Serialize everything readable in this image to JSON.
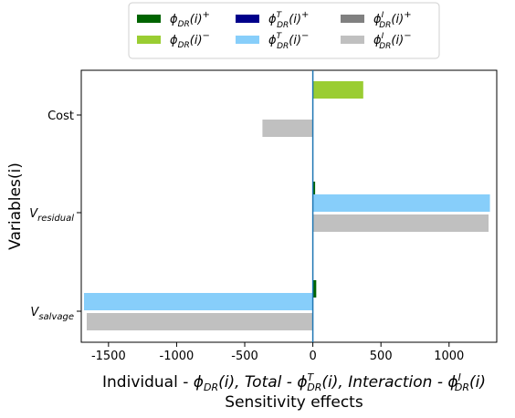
{
  "chart_data": {
    "type": "bar",
    "orientation": "horizontal",
    "categories": [
      "Cost",
      "V_residual",
      "V_salvage"
    ],
    "category_labels": [
      {
        "main": "Cost",
        "sub": ""
      },
      {
        "main": "V",
        "sub": "residual"
      },
      {
        "main": "V",
        "sub": "salvage"
      }
    ],
    "series": [
      {
        "name": "φ_DR(i)+",
        "color": "#006400",
        "values": [
          0,
          15,
          25
        ]
      },
      {
        "name": "φ_DR(i)−",
        "color": "#9acd32",
        "values": [
          370,
          0,
          0
        ]
      },
      {
        "name": "φ_DR^T(i)+",
        "color": "#00008b",
        "values": [
          0,
          0,
          0
        ]
      },
      {
        "name": "φ_DR^T(i)−",
        "color": "#87cefa",
        "values": [
          0,
          1300,
          -1680
        ]
      },
      {
        "name": "φ_DR^I(i)+",
        "color": "#808080",
        "values": [
          0,
          0,
          0
        ]
      },
      {
        "name": "φ_DR^I(i)−",
        "color": "#c0c0c0",
        "values": [
          -370,
          1290,
          -1660
        ]
      }
    ],
    "legend": {
      "position": "top",
      "columns": 3,
      "entries": [
        {
          "base": "ϕ",
          "sub": "DR",
          "sup": "",
          "arg": "(i)",
          "sign": "+",
          "color": "#006400"
        },
        {
          "base": "ϕ",
          "sub": "DR",
          "sup": "",
          "arg": "(i)",
          "sign": "−",
          "color": "#9acd32"
        },
        {
          "base": "ϕ",
          "sub": "DR",
          "sup": "T",
          "arg": "(i)",
          "sign": "+",
          "color": "#00008b"
        },
        {
          "base": "ϕ",
          "sub": "DR",
          "sup": "T",
          "arg": "(i)",
          "sign": "−",
          "color": "#87cefa"
        },
        {
          "base": "ϕ",
          "sub": "DR",
          "sup": "I",
          "arg": "(i)",
          "sign": "+",
          "color": "#808080"
        },
        {
          "base": "ϕ",
          "sub": "DR",
          "sup": "I",
          "arg": "(i)",
          "sign": "−",
          "color": "#c0c0c0"
        }
      ]
    },
    "xlim": [
      -1700,
      1350
    ],
    "xticks": [
      -1500,
      -1000,
      -500,
      0,
      500,
      1000
    ],
    "ylabel": "Variables(i)",
    "xlabel_parts": [
      {
        "t": "Individual - "
      },
      {
        "t": "ϕ"
      },
      {
        "t": "DR",
        "sub": true
      },
      {
        "t": "(i),  Total - "
      },
      {
        "t": "ϕ"
      },
      {
        "t": "T",
        "supsub": "DR"
      },
      {
        "t": "(i),  Interaction - "
      },
      {
        "t": "ϕ"
      },
      {
        "t": "I",
        "supsub": "DR"
      },
      {
        "t": "(i)"
      }
    ],
    "xlabel_line2": "Sensitivity effects",
    "zero_line_color": "#1f77b4",
    "grid": false
  }
}
